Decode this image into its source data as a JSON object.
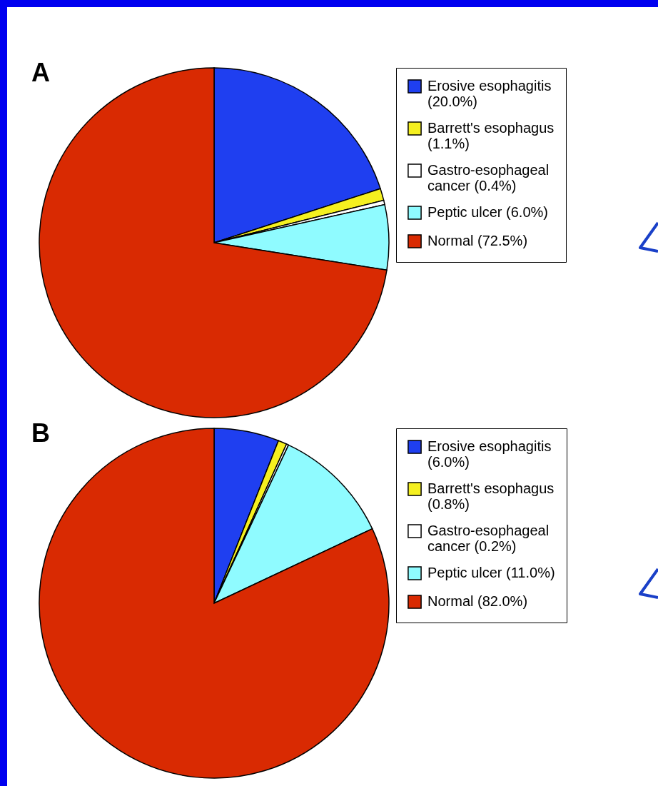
{
  "chart_data": [
    {
      "type": "pie",
      "title": "A",
      "categories": [
        "Erosive esophagitis (20.0%)",
        "Barrett's esophagus (1.1%)",
        "Gastro-esophageal cancer (0.4%)",
        "Peptic ulcer (6.0%)",
        "Normal (72.5%)"
      ],
      "values": [
        20.0,
        1.1,
        0.4,
        6.0,
        72.5
      ],
      "colors": [
        "#1f3ff0",
        "#f5f020",
        "#ffffff",
        "#8ffbff",
        "#d92a02"
      ],
      "legend": "right"
    },
    {
      "type": "pie",
      "title": "B",
      "categories": [
        "Erosive esophagitis (6.0%)",
        "Barrett's esophagus (0.8%)",
        "Gastro-esophageal cancer (0.2%)",
        "Peptic ulcer (11.0%)",
        "Normal (82.0%)"
      ],
      "values": [
        6.0,
        0.8,
        0.2,
        11.0,
        82.0
      ],
      "colors": [
        "#1f3ff0",
        "#f5f020",
        "#ffffff",
        "#8ffbff",
        "#d92a02"
      ],
      "legend": "right"
    }
  ]
}
